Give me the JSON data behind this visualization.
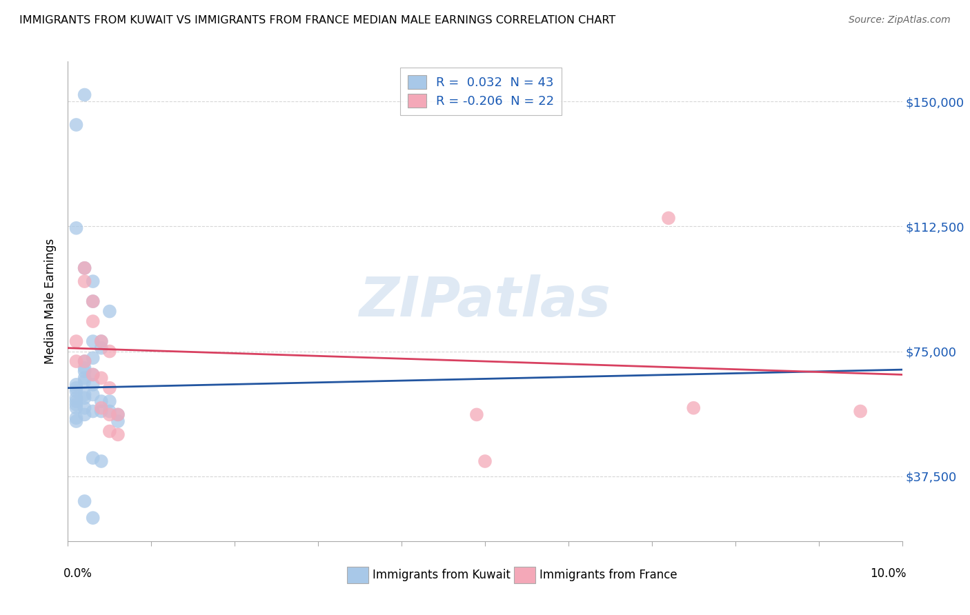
{
  "title": "IMMIGRANTS FROM KUWAIT VS IMMIGRANTS FROM FRANCE MEDIAN MALE EARNINGS CORRELATION CHART",
  "source": "Source: ZipAtlas.com",
  "ylabel": "Median Male Earnings",
  "watermark": "ZIPatlas",
  "legend_kuwait_label": "Immigrants from Kuwait",
  "legend_france_label": "Immigrants from France",
  "R_kuwait": 0.032,
  "N_kuwait": 43,
  "R_france": -0.206,
  "N_france": 22,
  "yticks": [
    37500,
    75000,
    112500,
    150000
  ],
  "ytick_labels": [
    "$37,500",
    "$75,000",
    "$112,500",
    "$150,000"
  ],
  "xlim": [
    0.0,
    0.1
  ],
  "ylim": [
    18000,
    162000
  ],
  "color_kuwait": "#a8c8e8",
  "color_france": "#f4a8b8",
  "line_color_kuwait": "#2255a0",
  "line_color_france": "#d84060",
  "background_color": "#ffffff",
  "grid_color": "#cccccc",
  "kuwait_points": [
    [
      0.001,
      143000
    ],
    [
      0.002,
      152000
    ],
    [
      0.005,
      87000
    ],
    [
      0.001,
      112000
    ],
    [
      0.002,
      100000
    ],
    [
      0.003,
      96000
    ],
    [
      0.003,
      90000
    ],
    [
      0.003,
      78000
    ],
    [
      0.004,
      78000
    ],
    [
      0.004,
      76000
    ],
    [
      0.003,
      73000
    ],
    [
      0.002,
      72000
    ],
    [
      0.002,
      70000
    ],
    [
      0.002,
      69000
    ],
    [
      0.003,
      68000
    ],
    [
      0.002,
      67000
    ],
    [
      0.002,
      66000
    ],
    [
      0.003,
      65000
    ],
    [
      0.001,
      65000
    ],
    [
      0.001,
      64000
    ],
    [
      0.001,
      63000
    ],
    [
      0.002,
      62000
    ],
    [
      0.002,
      61000
    ],
    [
      0.001,
      61000
    ],
    [
      0.001,
      60000
    ],
    [
      0.001,
      59000
    ],
    [
      0.001,
      58000
    ],
    [
      0.002,
      58000
    ],
    [
      0.003,
      57000
    ],
    [
      0.002,
      56000
    ],
    [
      0.001,
      55000
    ],
    [
      0.001,
      54000
    ],
    [
      0.003,
      62000
    ],
    [
      0.004,
      60000
    ],
    [
      0.004,
      57000
    ],
    [
      0.005,
      60000
    ],
    [
      0.005,
      57000
    ],
    [
      0.006,
      56000
    ],
    [
      0.006,
      54000
    ],
    [
      0.003,
      43000
    ],
    [
      0.004,
      42000
    ],
    [
      0.002,
      30000
    ],
    [
      0.003,
      25000
    ]
  ],
  "france_points": [
    [
      0.001,
      78000
    ],
    [
      0.001,
      72000
    ],
    [
      0.002,
      100000
    ],
    [
      0.002,
      96000
    ],
    [
      0.003,
      90000
    ],
    [
      0.003,
      84000
    ],
    [
      0.004,
      78000
    ],
    [
      0.002,
      72000
    ],
    [
      0.003,
      68000
    ],
    [
      0.005,
      75000
    ],
    [
      0.004,
      67000
    ],
    [
      0.005,
      64000
    ],
    [
      0.004,
      58000
    ],
    [
      0.005,
      56000
    ],
    [
      0.006,
      56000
    ],
    [
      0.005,
      51000
    ],
    [
      0.006,
      50000
    ],
    [
      0.072,
      115000
    ],
    [
      0.049,
      56000
    ],
    [
      0.05,
      42000
    ],
    [
      0.075,
      58000
    ],
    [
      0.095,
      57000
    ]
  ]
}
